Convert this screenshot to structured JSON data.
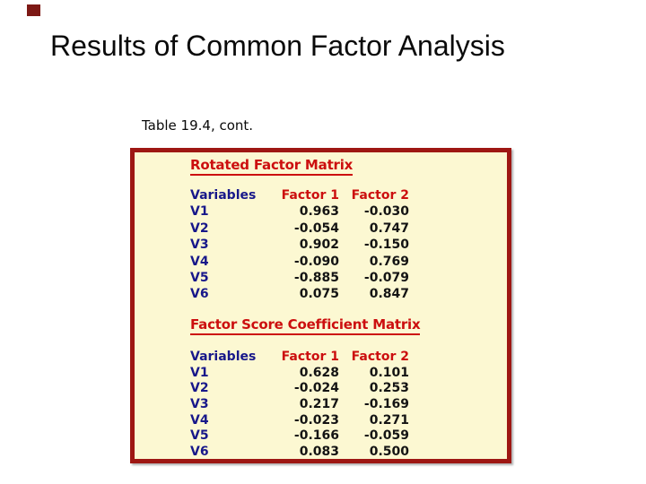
{
  "slide": {
    "title": "Results of Common Factor Analysis",
    "caption": "Table 19.4, cont."
  },
  "colors": {
    "table_border": "#9e1713",
    "table_background": "#fcf8d2",
    "heading_red": "#cc0f0f",
    "variable_navy": "#18188a",
    "value_black": "#141414",
    "corner_marker_red": "#7d1915"
  },
  "table": {
    "sections": [
      {
        "heading": "Rotated Factor Matrix",
        "columns": [
          "Variables",
          "Factor 1",
          "Factor 2"
        ],
        "rows": [
          [
            "V1",
            "0.963",
            "-0.030"
          ],
          [
            "V2",
            "-0.054",
            "0.747"
          ],
          [
            "V3",
            "0.902",
            "-0.150"
          ],
          [
            "V4",
            "-0.090",
            "0.769"
          ],
          [
            "V5",
            "-0.885",
            "-0.079"
          ],
          [
            "V6",
            "0.075",
            "0.847"
          ]
        ]
      },
      {
        "heading": "Factor Score Coefficient Matrix",
        "columns": [
          "Variables",
          "Factor 1",
          "Factor 2"
        ],
        "rows": [
          [
            "V1",
            "0.628",
            "0.101"
          ],
          [
            "V2",
            "-0.024",
            "0.253"
          ],
          [
            "V3",
            "0.217",
            "-0.169"
          ],
          [
            "V4",
            "-0.023",
            "0.271"
          ],
          [
            "V5",
            "-0.166",
            "-0.059"
          ],
          [
            "V6",
            "0.083",
            "0.500"
          ]
        ]
      }
    ]
  }
}
